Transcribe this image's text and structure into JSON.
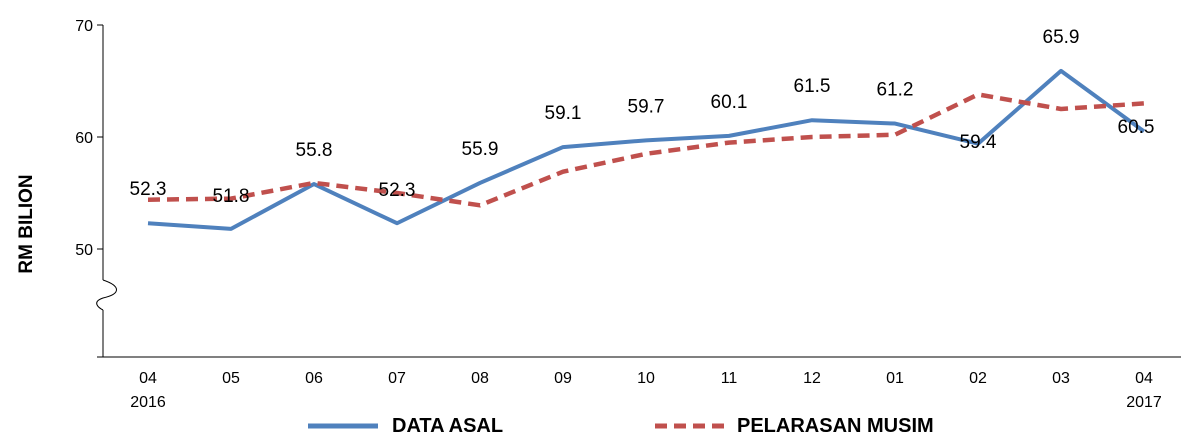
{
  "chart_data": {
    "type": "line",
    "ylabel": "RM  BILION",
    "xlabel": "",
    "ylim": [
      40,
      70
    ],
    "y_ticks": [
      50,
      60,
      70
    ],
    "y_axis_break": true,
    "grid": false,
    "legend_position": "bottom",
    "categories": [
      "04",
      "05",
      "06",
      "07",
      "08",
      "09",
      "10",
      "11",
      "12",
      "01",
      "02",
      "03",
      "04"
    ],
    "year_labels": [
      {
        "index": 0,
        "text": "2016"
      },
      {
        "index": 12,
        "text": "2017"
      }
    ],
    "series": [
      {
        "name": "DATA ASAL",
        "color": "#4F81BD",
        "style": "solid",
        "values": [
          52.3,
          51.8,
          55.8,
          52.3,
          55.9,
          59.1,
          59.7,
          60.1,
          61.5,
          61.2,
          59.4,
          65.9,
          60.5
        ],
        "labels": [
          "52.3",
          "51.8",
          "55.8",
          "52.3",
          "55.9",
          "59.1",
          "59.7",
          "60.1",
          "61.5",
          "61.2",
          "59.4",
          "65.9",
          "60.5"
        ]
      },
      {
        "name": "PELARASAN MUSIM",
        "color": "#C0504D",
        "style": "dashed",
        "values": [
          54.4,
          54.5,
          55.9,
          55.0,
          53.9,
          56.9,
          58.5,
          59.5,
          60.0,
          60.2,
          63.8,
          62.5,
          63.0
        ]
      }
    ]
  }
}
